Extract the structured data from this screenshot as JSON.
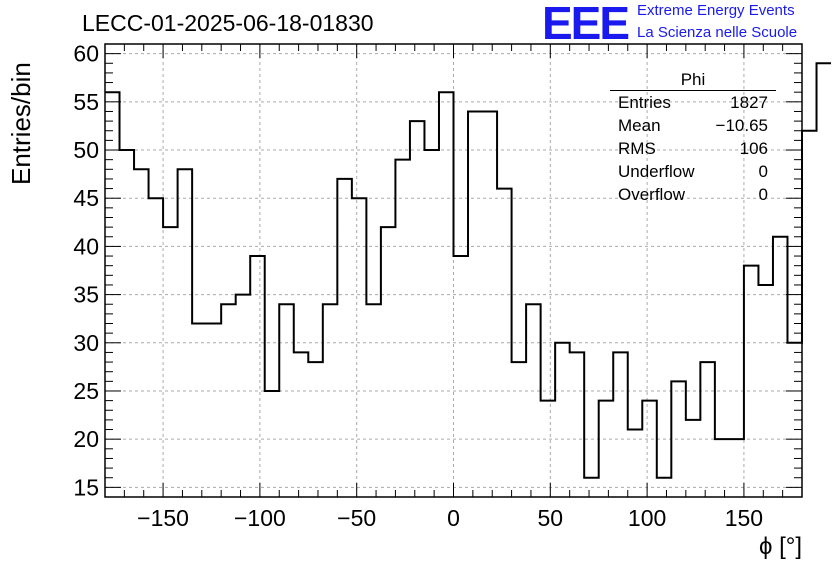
{
  "header": {
    "title": "LECC-01-2025-06-18-01830",
    "logo_text": "EEE",
    "logo_line1": "Extreme Energy Events",
    "logo_line2": "La Scienza nelle Scuole"
  },
  "stats_box": {
    "title": "Phi",
    "rows": [
      {
        "label": "Entries",
        "value": "1827"
      },
      {
        "label": "Mean",
        "value": "−10.65"
      },
      {
        "label": "RMS",
        "value": "106"
      },
      {
        "label": "Underflow",
        "value": "0"
      },
      {
        "label": "Overflow",
        "value": "0"
      }
    ]
  },
  "chart_data": {
    "type": "histogram",
    "title": "LECC-01-2025-06-18-01830",
    "xlabel": "ϕ [°]",
    "ylabel": "Entries/bin",
    "xlim": [
      -180,
      180
    ],
    "ylim": [
      14,
      61
    ],
    "bin_width": 7.5,
    "x_ticks": [
      -150,
      -100,
      -50,
      0,
      50,
      100,
      150
    ],
    "x_tick_labels": [
      "−150",
      "−100",
      "−50",
      "0",
      "50",
      "100",
      "150"
    ],
    "y_ticks": [
      15,
      20,
      25,
      30,
      35,
      40,
      45,
      50,
      55,
      60
    ],
    "y_tick_labels": [
      "15",
      "20",
      "25",
      "30",
      "35",
      "40",
      "45",
      "50",
      "55",
      "60"
    ],
    "grid": true,
    "values": [
      56,
      50,
      48,
      45,
      42,
      48,
      32,
      32,
      34,
      35,
      39,
      25,
      34,
      29,
      28,
      34,
      47,
      45,
      34,
      42,
      49,
      53,
      50,
      56,
      39,
      54,
      54,
      46,
      28,
      34,
      24,
      30,
      29,
      16,
      24,
      29,
      21,
      24,
      16,
      26,
      22,
      28,
      20,
      20,
      38,
      36,
      41,
      30,
      52,
      59
    ],
    "line_color": "#000000",
    "grid_color": "#aaaaaa"
  }
}
